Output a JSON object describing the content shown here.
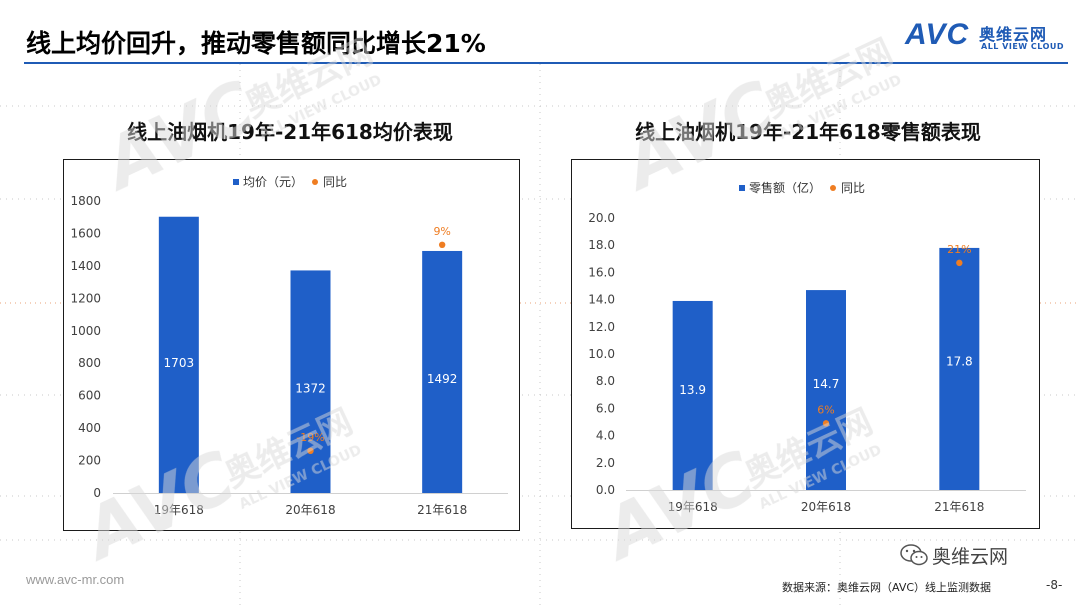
{
  "header": {
    "title": "线上均价回升，推动零售额同比增长21%",
    "logo": {
      "mark": "AVC",
      "name_cn": "奥维云网",
      "name_en": "ALL VIEW CLOUD"
    }
  },
  "colors": {
    "bar": "#1f5fc8",
    "dot": "#ef7d22",
    "rule": "#1f5bb5"
  },
  "watermark_text": {
    "mark": "AVC",
    "name_cn": "奥维云网",
    "name_en": "ALL VIEW CLOUD"
  },
  "chart_data": [
    {
      "type": "bar",
      "title": "线上油烟机19年-21年618均价表现",
      "categories": [
        "19年618",
        "20年618",
        "21年618"
      ],
      "series": [
        {
          "name": "均价（元）",
          "values": [
            1703,
            1372,
            1492
          ],
          "labels": [
            "1703",
            "1372",
            "1492"
          ]
        },
        {
          "name": "同比",
          "values": [
            null,
            260,
            1530
          ],
          "labels": [
            "",
            "-19%",
            "9%"
          ],
          "yoy": [
            null,
            -19,
            9
          ]
        }
      ],
      "ylim": [
        0,
        1800
      ],
      "yticks": [
        0,
        200,
        400,
        600,
        800,
        1000,
        1200,
        1400,
        1600,
        1800
      ],
      "ytick_labels": [
        "0",
        "200",
        "400",
        "600",
        "800",
        "1000",
        "1200",
        "1400",
        "1600",
        "1800"
      ],
      "legend": "top-center"
    },
    {
      "type": "bar",
      "title": "线上油烟机19年-21年618零售额表现",
      "categories": [
        "19年618",
        "20年618",
        "21年618"
      ],
      "series": [
        {
          "name": "零售额（亿）",
          "values": [
            13.9,
            14.7,
            17.8
          ],
          "labels": [
            "13.9",
            "14.7",
            "17.8"
          ]
        },
        {
          "name": "同比",
          "values": [
            null,
            4.9,
            16.7
          ],
          "labels": [
            "",
            "6%",
            "21%"
          ],
          "yoy": [
            null,
            6,
            21
          ]
        }
      ],
      "ylim": [
        0,
        20
      ],
      "yticks": [
        0,
        2,
        4,
        6,
        8,
        10,
        12,
        14,
        16,
        18,
        20
      ],
      "ytick_labels": [
        "0.0",
        "2.0",
        "4.0",
        "6.0",
        "8.0",
        "10.0",
        "12.0",
        "14.0",
        "16.0",
        "18.0",
        "20.0"
      ],
      "legend": "top-center"
    }
  ],
  "footer": {
    "url": "www.avc-mr.com",
    "source": "数据来源：奥维云网（AVC）线上监测数据",
    "page": "-8-",
    "wechat": "奥维云网"
  }
}
